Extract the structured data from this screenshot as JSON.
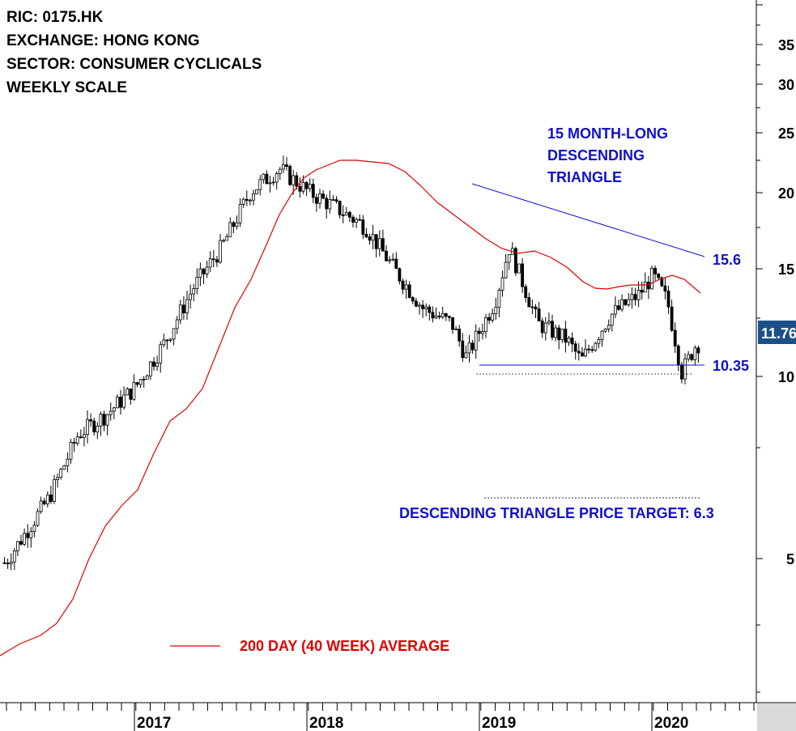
{
  "chart_data": {
    "type": "candlestick",
    "scale": "log",
    "info_lines": [
      "RIC: 0175.HK",
      "EXCHANGE: HONG KONG",
      "SECTOR: CONSUMER CYCLICALS",
      "WEEKLY SCALE"
    ],
    "x_ticks": [
      "2017",
      "2018",
      "2019",
      "2020"
    ],
    "y_ticks": [
      "35",
      "30",
      "25",
      "20",
      "15",
      "10",
      "5"
    ],
    "ylim": [
      3.0,
      40
    ],
    "grid": false,
    "last_price_label": "11.76",
    "annotations": {
      "pattern": [
        "15 MONTH-LONG",
        "DESCENDING",
        "TRIANGLE"
      ],
      "resistance_label": "15.6",
      "support_label": "10.35",
      "target_label": "DESCENDING TRIANGLE PRICE TARGET: 6.3"
    },
    "legend": {
      "label": "200 DAY (40 WEEK) AVERAGE",
      "color": "#e00000"
    },
    "colors": {
      "up": "#ffffff",
      "down": "#000000",
      "trend": "#1010cc",
      "average": "#e00000",
      "badge": "#1a4f8a"
    },
    "resistance": {
      "start": [
        "2018-11",
        20.4
      ],
      "end": [
        "2020-04",
        15.6
      ]
    },
    "support": {
      "start": [
        "2018-12",
        10.35
      ],
      "end": [
        "2020-04",
        10.35
      ]
    },
    "target_price": 6.3,
    "close_approx": [
      [
        "2016-01",
        3.4
      ],
      [
        "2016-04",
        4.0
      ],
      [
        "2016-07",
        5.5
      ],
      [
        "2016-09",
        7.5
      ],
      [
        "2016-11",
        8.3
      ],
      [
        "2017-01",
        9.5
      ],
      [
        "2017-03",
        11.8
      ],
      [
        "2017-05",
        15.5
      ],
      [
        "2017-07",
        19.0
      ],
      [
        "2017-09",
        25.0
      ],
      [
        "2017-11",
        28.0
      ],
      [
        "2018-01",
        25.0
      ],
      [
        "2018-03",
        23.0
      ],
      [
        "2018-05",
        21.0
      ],
      [
        "2018-07",
        17.0
      ],
      [
        "2018-09",
        14.0
      ],
      [
        "2018-11",
        13.0
      ],
      [
        "2018-12",
        11.0
      ],
      [
        "2019-02",
        14.5
      ],
      [
        "2019-03",
        19.0
      ],
      [
        "2019-05",
        13.0
      ],
      [
        "2019-07",
        12.0
      ],
      [
        "2019-08",
        10.8
      ],
      [
        "2019-10",
        13.5
      ],
      [
        "2019-12",
        15.0
      ],
      [
        "2020-01",
        16.5
      ],
      [
        "2020-02",
        14.5
      ],
      [
        "2020-03",
        10.2
      ],
      [
        "2020-04",
        11.76
      ]
    ],
    "average_approx": [
      [
        "2016-01",
        3.3
      ],
      [
        "2016-06",
        4.0
      ],
      [
        "2016-12",
        6.5
      ],
      [
        "2017-06",
        9.0
      ],
      [
        "2017-12",
        15.0
      ],
      [
        "2018-03",
        21.0
      ],
      [
        "2018-06",
        22.0
      ],
      [
        "2018-09",
        18.0
      ],
      [
        "2018-12",
        16.0
      ],
      [
        "2019-03",
        15.5
      ],
      [
        "2019-06",
        14.0
      ],
      [
        "2019-09",
        14.5
      ],
      [
        "2020-01",
        14.8
      ],
      [
        "2020-04",
        13.2
      ]
    ]
  }
}
